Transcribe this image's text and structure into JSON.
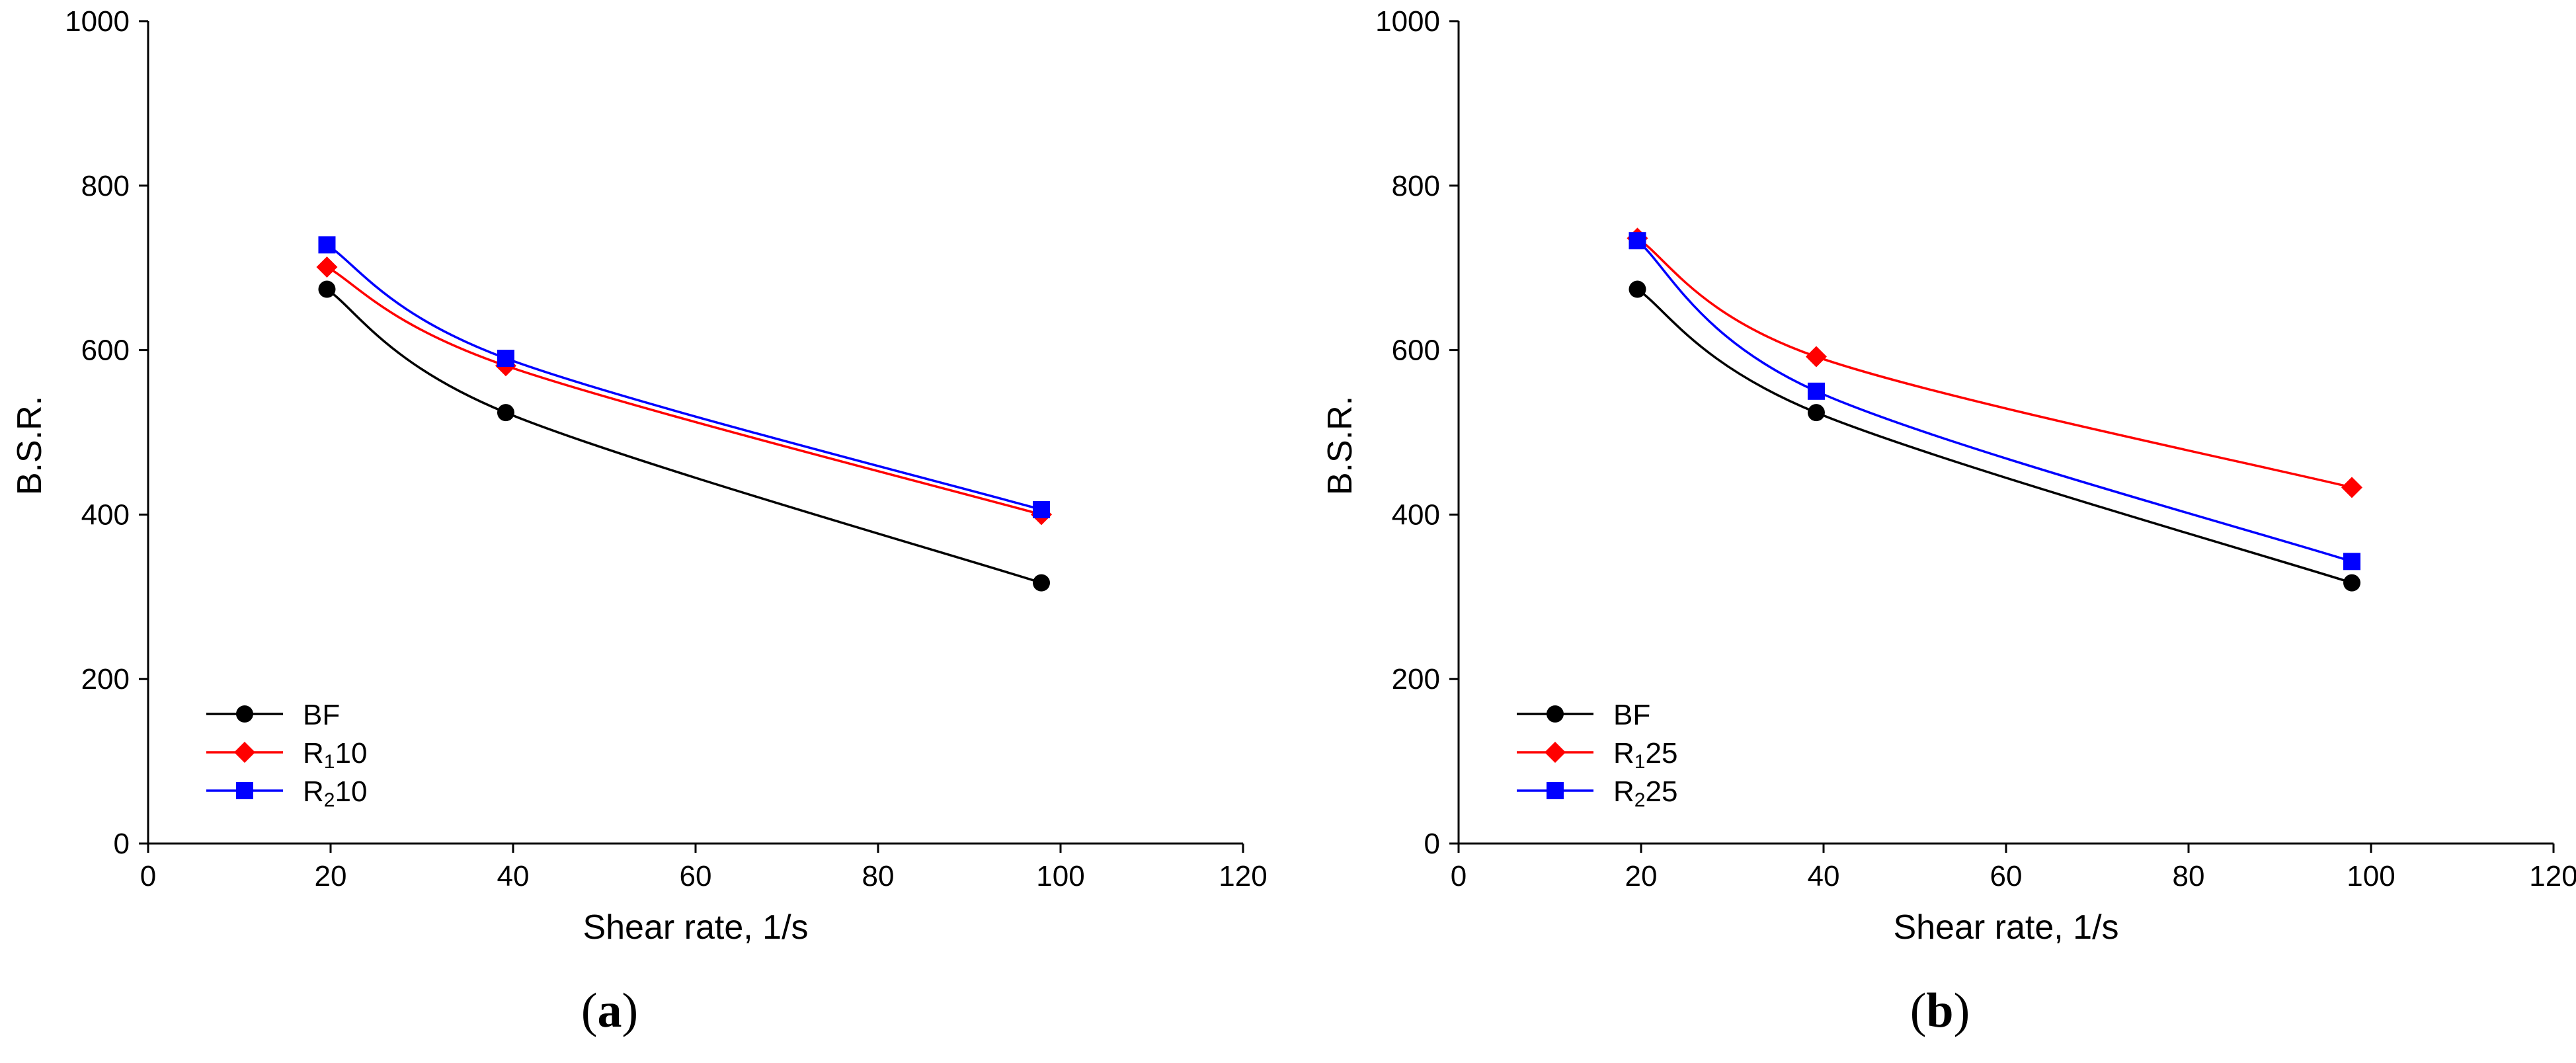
{
  "colors": {
    "BF": "#000000",
    "R1": "#ff0000",
    "R2": "#0000ff",
    "axis": "#000000"
  },
  "chart_data": [
    {
      "type": "line",
      "panel_label": "a",
      "xlabel": "Shear rate,  1/s",
      "ylabel": "B.S.R.",
      "xlim": [
        0,
        120
      ],
      "ylim": [
        0,
        1000
      ],
      "xticks": [
        0,
        20,
        40,
        60,
        80,
        100,
        120
      ],
      "yticks": [
        0,
        200,
        400,
        600,
        800,
        1000
      ],
      "legend_position": "bottom-left",
      "series": [
        {
          "name": "BF",
          "sub": "",
          "marker": "circle",
          "color": "#000000",
          "x": [
            19.6,
            39.2,
            97.9
          ],
          "y": [
            674,
            524,
            317
          ]
        },
        {
          "name": "R10",
          "prefix": "R",
          "sub": "1",
          "suffix": "10",
          "marker": "diamond",
          "color": "#ff0000",
          "x": [
            19.6,
            39.2,
            97.9
          ],
          "y": [
            701,
            581,
            400
          ]
        },
        {
          "name": "R10",
          "prefix": "R",
          "sub": "2",
          "suffix": "10",
          "marker": "square",
          "color": "#0000ff",
          "x": [
            19.6,
            39.2,
            97.9
          ],
          "y": [
            728,
            590,
            406
          ]
        }
      ]
    },
    {
      "type": "line",
      "panel_label": "b",
      "xlabel": "Shear rate,  1/s",
      "ylabel": "B.S.R.",
      "xlim": [
        0,
        120
      ],
      "ylim": [
        0,
        1000
      ],
      "xticks": [
        0,
        20,
        40,
        60,
        80,
        100,
        120
      ],
      "yticks": [
        0,
        200,
        400,
        600,
        800,
        1000
      ],
      "legend_position": "bottom-left",
      "series": [
        {
          "name": "BF",
          "sub": "",
          "marker": "circle",
          "color": "#000000",
          "x": [
            19.6,
            39.2,
            97.9
          ],
          "y": [
            674,
            524,
            317
          ]
        },
        {
          "name": "R25",
          "prefix": "R",
          "sub": "1",
          "suffix": "25",
          "marker": "diamond",
          "color": "#ff0000",
          "x": [
            19.6,
            39.2,
            97.9
          ],
          "y": [
            736,
            592,
            433
          ]
        },
        {
          "name": "R25",
          "prefix": "R",
          "sub": "2",
          "suffix": "25",
          "marker": "square",
          "color": "#0000ff",
          "x": [
            19.6,
            39.2,
            97.9
          ],
          "y": [
            733,
            550,
            343
          ]
        }
      ]
    }
  ]
}
